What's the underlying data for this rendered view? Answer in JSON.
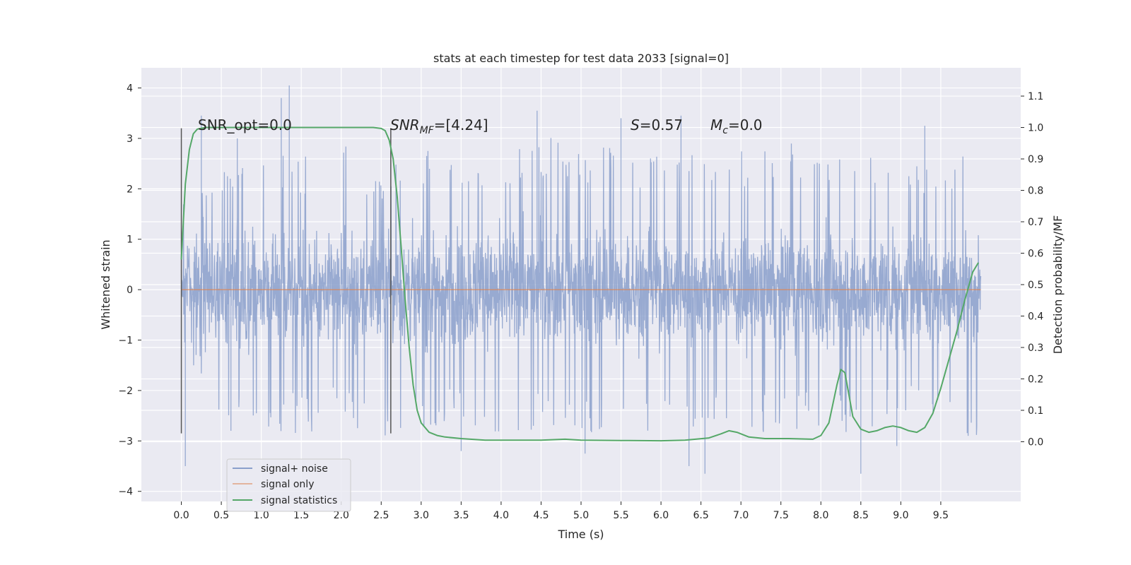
{
  "chart_data": {
    "type": "line",
    "title": "stats at each timestep for test data 2033 [signal=0]",
    "xlabel": "Time (s)",
    "ylabel_left": "Whitened strain",
    "ylabel_right": "Detection probability/MF",
    "xlim": [
      -0.5,
      10.5
    ],
    "ylim_left": [
      -4.2,
      4.4
    ],
    "ylim_right": [
      -0.19,
      1.19
    ],
    "x_ticks": [
      "0.0",
      "0.5",
      "1.0",
      "1.5",
      "2.0",
      "2.5",
      "3.0",
      "3.5",
      "4.0",
      "4.5",
      "5.0",
      "5.5",
      "6.0",
      "6.5",
      "7.0",
      "7.5",
      "8.0",
      "8.5",
      "9.0",
      "9.5"
    ],
    "y_ticks_left": [
      "−4",
      "−3",
      "−2",
      "−1",
      "0",
      "1",
      "2",
      "3",
      "4"
    ],
    "y_ticks_right": [
      "0.0",
      "0.1",
      "0.2",
      "0.3",
      "0.4",
      "0.5",
      "0.6",
      "0.7",
      "0.8",
      "0.9",
      "1.0",
      "1.1"
    ],
    "grid": true,
    "legend_position": "lower-left",
    "annotations": {
      "snr_opt": "SNR_opt=0.0",
      "snr_mf_main": "SNR",
      "snr_mf_sub": "MF",
      "snr_mf_rest": "=[4.24]",
      "s_main": "S",
      "s_rest": "=0.57",
      "mc_main": "M",
      "mc_sub": "c",
      "mc_rest": "=0.0"
    },
    "vertical_markers": [
      {
        "x": 0.0,
        "y_range": [
          -2.85,
          3.2
        ]
      },
      {
        "x": 2.62,
        "y_range": [
          -2.85,
          3.2
        ]
      }
    ],
    "series": [
      {
        "name": "signal+ noise",
        "color": "#8a9fcb",
        "axis": "left",
        "x_range": [
          0.0,
          10.0
        ],
        "envelope_upper": [
          1.6,
          2.1,
          2.4,
          2.2,
          2.5,
          2.0,
          2.3,
          2.4,
          2.1,
          2.6,
          2.3,
          2.5,
          2.2,
          2.4,
          2.3,
          2.5,
          2.2,
          2.4,
          2.0,
          2.3,
          2.2
        ],
        "envelope_lower": [
          -1.3,
          -2.2,
          -2.3,
          -2.4,
          -2.2,
          -2.5,
          -2.3,
          -2.2,
          -2.4,
          -2.3,
          -2.5,
          -2.2,
          -2.4,
          -2.3,
          -2.4,
          -2.5,
          -2.3,
          -2.4,
          -2.2,
          -2.3,
          -2.5
        ],
        "peaks": [
          [
            0.05,
            -3.5
          ],
          [
            0.25,
            3.45
          ],
          [
            0.62,
            -2.8
          ],
          [
            0.7,
            3.0
          ],
          [
            1.35,
            4.05
          ],
          [
            1.25,
            3.8
          ],
          [
            3.5,
            -3.2
          ],
          [
            4.45,
            3.55
          ],
          [
            5.05,
            -3.25
          ],
          [
            5.5,
            3.4
          ],
          [
            6.25,
            3.45
          ],
          [
            6.35,
            -3.5
          ],
          [
            6.55,
            -3.65
          ],
          [
            8.5,
            -3.65
          ],
          [
            8.95,
            -3.1
          ],
          [
            9.3,
            3.25
          ]
        ]
      },
      {
        "name": "signal only",
        "color": "#dd8452",
        "axis": "left",
        "x": [
          0.0,
          10.0
        ],
        "values": [
          0.0,
          0.0
        ]
      },
      {
        "name": "signal statistics",
        "color": "#55a868",
        "axis": "right",
        "x": [
          0.0,
          0.05,
          0.1,
          0.15,
          0.2,
          0.3,
          0.5,
          1.0,
          1.5,
          2.0,
          2.4,
          2.5,
          2.55,
          2.6,
          2.65,
          2.7,
          2.75,
          2.8,
          2.85,
          2.9,
          2.95,
          3.0,
          3.1,
          3.2,
          3.3,
          3.5,
          3.8,
          4.0,
          4.5,
          4.8,
          5.0,
          5.5,
          6.0,
          6.3,
          6.6,
          6.75,
          6.85,
          6.95,
          7.1,
          7.3,
          7.6,
          7.9,
          8.0,
          8.1,
          8.2,
          8.25,
          8.3,
          8.35,
          8.4,
          8.5,
          8.6,
          8.7,
          8.8,
          8.9,
          9.0,
          9.1,
          9.2,
          9.3,
          9.4,
          9.5,
          9.6,
          9.7,
          9.8,
          9.9,
          9.97
        ],
        "values": [
          0.58,
          0.82,
          0.93,
          0.98,
          0.995,
          1.0,
          1.0,
          1.0,
          1.0,
          1.0,
          1.0,
          0.997,
          0.99,
          0.96,
          0.9,
          0.78,
          0.62,
          0.45,
          0.3,
          0.18,
          0.1,
          0.06,
          0.03,
          0.02,
          0.015,
          0.01,
          0.005,
          0.005,
          0.005,
          0.008,
          0.005,
          0.004,
          0.003,
          0.005,
          0.012,
          0.025,
          0.035,
          0.03,
          0.015,
          0.01,
          0.01,
          0.008,
          0.02,
          0.06,
          0.18,
          0.23,
          0.22,
          0.15,
          0.08,
          0.04,
          0.03,
          0.035,
          0.045,
          0.05,
          0.045,
          0.035,
          0.03,
          0.045,
          0.09,
          0.17,
          0.26,
          0.35,
          0.45,
          0.54,
          0.57
        ]
      }
    ]
  }
}
